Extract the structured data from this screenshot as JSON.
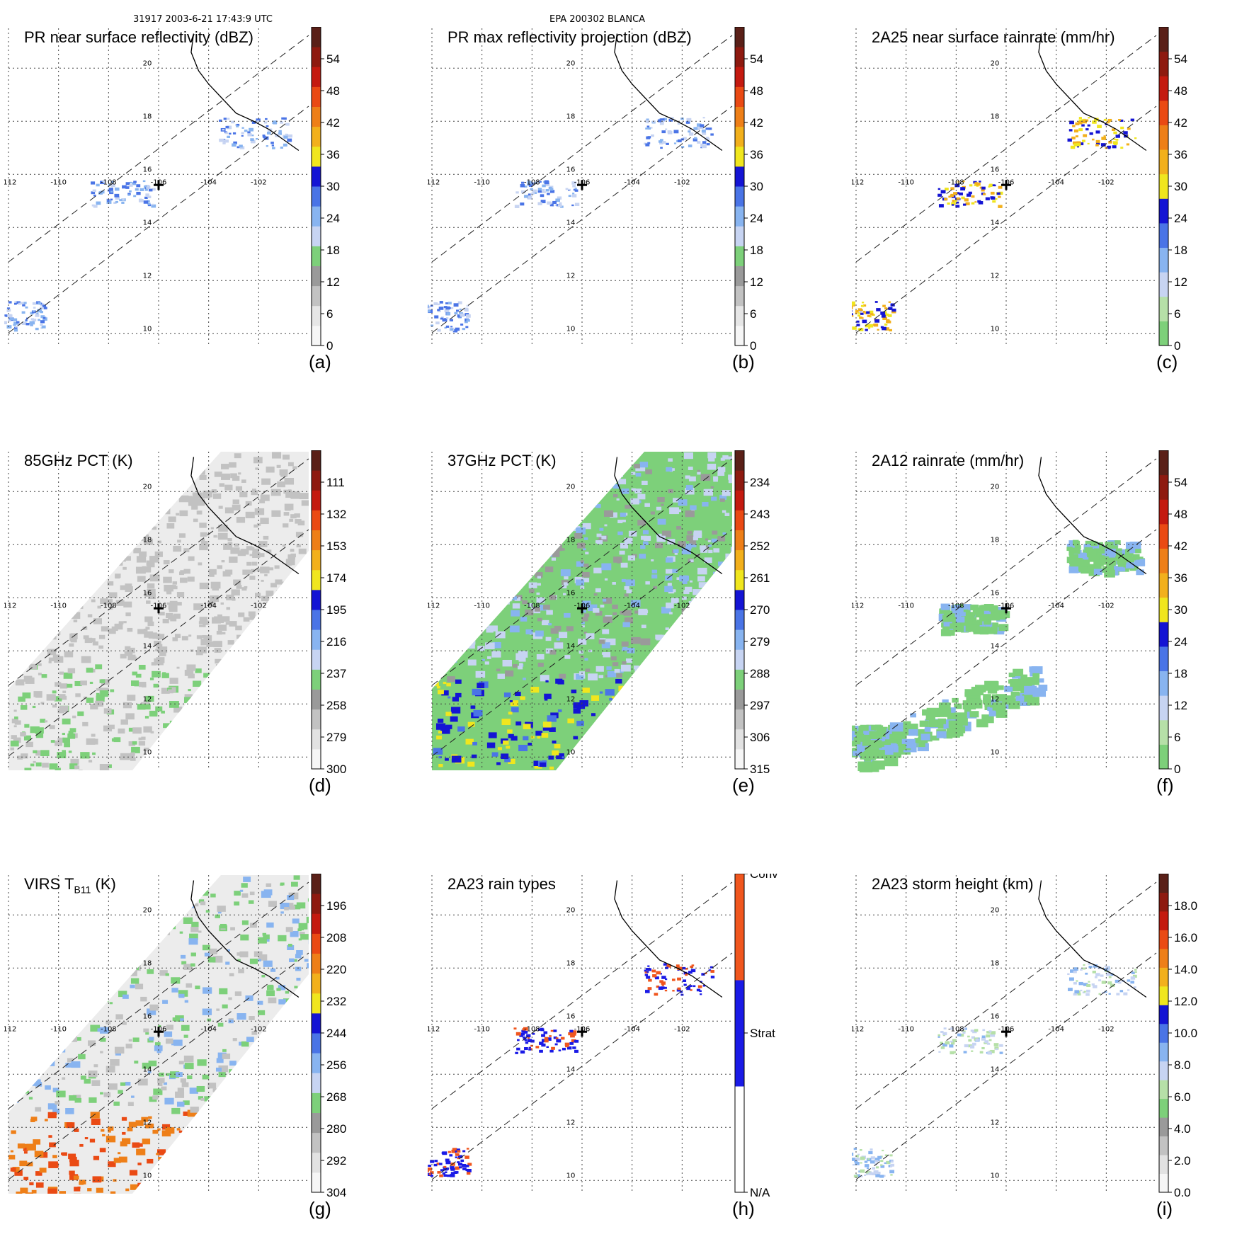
{
  "header": {
    "orbit_time": "31917 2003-6-21 17:43:9 UTC",
    "storm": "EPA 200302 BLANCA"
  },
  "chart_data": [
    {
      "type": "heatmap",
      "id": "a",
      "title": "PR near surface reflectivity (dBZ)",
      "label": "(a)",
      "cbar_ticks": [
        "0",
        "6",
        "12",
        "18",
        "24",
        "30",
        "36",
        "42",
        "48",
        "54"
      ],
      "cbar_colors": [
        "#f6f6f6",
        "#e6e6e6",
        "#c2c2c2",
        "#9a9a9a",
        "#7dd07a",
        "#c7d4f2",
        "#88b4f0",
        "#4a74e6",
        "#1414d4",
        "#f0e61e",
        "#f2b01c",
        "#ee7f18",
        "#ea4a14",
        "#c41a10",
        "#8e1a10",
        "#5a2018"
      ],
      "rain": "sparse"
    },
    {
      "type": "heatmap",
      "id": "b",
      "title": "PR max reflectivity projection (dBZ)",
      "label": "(b)",
      "cbar_ticks": [
        "0",
        "6",
        "12",
        "18",
        "24",
        "30",
        "36",
        "42",
        "48",
        "54"
      ],
      "cbar_colors": [
        "#f6f6f6",
        "#e6e6e6",
        "#c2c2c2",
        "#9a9a9a",
        "#7dd07a",
        "#c7d4f2",
        "#88b4f0",
        "#4a74e6",
        "#1414d4",
        "#f0e61e",
        "#f2b01c",
        "#ee7f18",
        "#ea4a14",
        "#c41a10",
        "#8e1a10",
        "#5a2018"
      ],
      "rain": "sparse"
    },
    {
      "type": "heatmap",
      "id": "c",
      "title": "2A25 near surface rainrate (mm/hr)",
      "label": "(c)",
      "cbar_ticks": [
        "0",
        "6",
        "12",
        "18",
        "24",
        "30",
        "36",
        "42",
        "48",
        "54"
      ],
      "cbar_colors": [
        "#7dd07a",
        "#b6e0a8",
        "#c7d4f2",
        "#88b4f0",
        "#4a74e6",
        "#1414d4",
        "#f0e61e",
        "#f2b01c",
        "#ee7f18",
        "#ea4a14",
        "#c41a10",
        "#8e1a10",
        "#5a2018"
      ],
      "rain": "sparse"
    },
    {
      "type": "heatmap",
      "id": "d",
      "title": "85GHz PCT (K)",
      "label": "(d)",
      "cbar_ticks": [
        "300",
        "279",
        "258",
        "237",
        "216",
        "195",
        "174",
        "153",
        "132",
        "111"
      ],
      "cbar_colors": [
        "#f6f6f6",
        "#e2e2e2",
        "#c2c2c2",
        "#9a9a9a",
        "#7dd07a",
        "#c7d4f2",
        "#88b4f0",
        "#4a74e6",
        "#1414d4",
        "#f0e61e",
        "#f2b01c",
        "#ee7f18",
        "#ea4a14",
        "#c41a10",
        "#8e1a10",
        "#5a2018"
      ],
      "rain": "swath"
    },
    {
      "type": "heatmap",
      "id": "e",
      "title": "37GHz PCT (K)",
      "label": "(e)",
      "cbar_ticks": [
        "315",
        "306",
        "297",
        "288",
        "279",
        "270",
        "261",
        "252",
        "243",
        "234"
      ],
      "cbar_colors": [
        "#f6f6f6",
        "#e2e2e2",
        "#c2c2c2",
        "#9a9a9a",
        "#7dd07a",
        "#c7d4f2",
        "#88b4f0",
        "#4a74e6",
        "#1414d4",
        "#f0e61e",
        "#f2b01c",
        "#ee7f18",
        "#ea4a14",
        "#c41a10",
        "#8e1a10",
        "#5a2018"
      ],
      "rain": "swath"
    },
    {
      "type": "heatmap",
      "id": "f",
      "title": "2A12 rainrate (mm/hr)",
      "label": "(f)",
      "cbar_ticks": [
        "0",
        "6",
        "12",
        "18",
        "24",
        "30",
        "36",
        "42",
        "48",
        "54"
      ],
      "cbar_colors": [
        "#7dd07a",
        "#b6e0a8",
        "#c7d4f2",
        "#88b4f0",
        "#4a74e6",
        "#1414d4",
        "#f0e61e",
        "#f2b01c",
        "#ee7f18",
        "#ea4a14",
        "#c41a10",
        "#8e1a10",
        "#5a2018"
      ],
      "rain": "blobs"
    },
    {
      "type": "heatmap",
      "id": "g",
      "title": "VIRS T",
      "title_sub": "B11",
      "title_end": " (K)",
      "label": "(g)",
      "cbar_ticks": [
        "304",
        "292",
        "280",
        "268",
        "256",
        "244",
        "232",
        "220",
        "208",
        "196"
      ],
      "cbar_colors": [
        "#f6f6f6",
        "#e2e2e2",
        "#c2c2c2",
        "#9a9a9a",
        "#7dd07a",
        "#c7d4f2",
        "#88b4f0",
        "#4a74e6",
        "#1414d4",
        "#f0e61e",
        "#f2b01c",
        "#ee7f18",
        "#ea4a14",
        "#c41a10",
        "#8e1a10",
        "#5a2018"
      ],
      "rain": "swath"
    },
    {
      "type": "heatmap",
      "id": "h",
      "title": "2A23 rain types",
      "label": "(h)",
      "cbar_ticks": [
        "N/A",
        "Strat",
        "Conv"
      ],
      "cbar_colors": [
        "#ffffff",
        "#1a1ae6",
        "#f0561e"
      ],
      "rain": "sparse"
    },
    {
      "type": "heatmap",
      "id": "i",
      "title": "2A23 storm height (km)",
      "label": "(i)",
      "cbar_ticks": [
        "0.0",
        "2.0",
        "4.0",
        "6.0",
        "8.0",
        "10.0",
        "12.0",
        "14.0",
        "16.0",
        "18.0"
      ],
      "cbar_colors": [
        "#f6f6f6",
        "#e2e2e2",
        "#c2c2c2",
        "#9a9a9a",
        "#7dd07a",
        "#b6e0a8",
        "#c7d4f2",
        "#88b4f0",
        "#4a74e6",
        "#1414d4",
        "#f0e61e",
        "#f2b01c",
        "#ee7f18",
        "#ea4a14",
        "#c41a10",
        "#8e1a10",
        "#5a2018"
      ],
      "rain": "sparse"
    }
  ],
  "map": {
    "lon_ticks": [
      "-112",
      "-110",
      "-108",
      "-106",
      "-104",
      "-102"
    ],
    "lat_ticks": [
      "20",
      "18",
      "16",
      "14",
      "12",
      "10"
    ],
    "lon_range": [
      -112,
      -100
    ],
    "lat_range": [
      9.5,
      21.5
    ],
    "storm_center": [
      -106,
      15.6
    ]
  }
}
